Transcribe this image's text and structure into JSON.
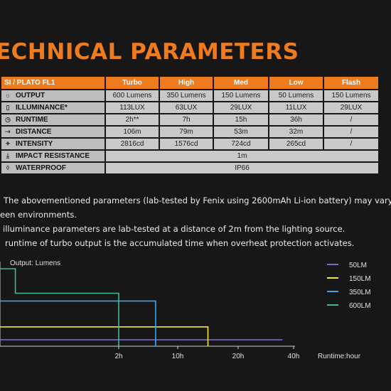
{
  "title": "ECHNICAL PARAMETERS",
  "table": {
    "header": [
      "SI / PLATO FL1",
      "Turbo",
      "High",
      "Med",
      "Low",
      "Flash"
    ],
    "rows": [
      {
        "icon": "output-icon",
        "glyph": "☼",
        "cells": [
          "OUTPUT",
          "600 Lumens",
          "350 Lumens",
          "150 Lumens",
          "50 Lumens",
          "150 Lumens"
        ]
      },
      {
        "icon": "illuminance-icon",
        "glyph": "▯",
        "cells": [
          "ILLUMINANCE*",
          "113LUX",
          "63LUX",
          "29LUX",
          "11LUX",
          "29LUX"
        ]
      },
      {
        "icon": "runtime-icon",
        "glyph": "◷",
        "cells": [
          "RUNTIME",
          "2h**",
          "7h",
          "15h",
          "36h",
          "/"
        ]
      },
      {
        "icon": "distance-icon",
        "glyph": "⇢",
        "cells": [
          "DISTANCE",
          "106m",
          "79m",
          "53m",
          "32m",
          "/"
        ]
      },
      {
        "icon": "intensity-icon",
        "glyph": "✦",
        "cells": [
          "INTENSITY",
          "2816cd",
          "1576cd",
          "724cd",
          "265cd",
          "/"
        ]
      },
      {
        "icon": "impact-icon",
        "glyph": "⤓",
        "cells": [
          "IMPACT RESISTANCE",
          "1m"
        ]
      },
      {
        "icon": "waterproof-icon",
        "glyph": "◊",
        "cells": [
          "WATERPROOF",
          "IP66"
        ]
      }
    ]
  },
  "notes": [
    "The abovementioned parameters (lab-tested by Fenix using 2600mAh Li-ion battery) may vary",
    "een environments.",
    "illuminance parameters are lab-tested at a distance of 2m from the lighting source.",
    "runtime of  turbo output is the accumulated time when overheat protection activates."
  ],
  "chart_data": {
    "type": "line",
    "ylabel": "Output: Lumens",
    "xlabel": "Runtime:hour",
    "x_ticks": [
      "2h",
      "10h",
      "20h",
      "40h"
    ],
    "legend": [
      {
        "name": "50LM",
        "color": "#7c66cc"
      },
      {
        "name": "150LM",
        "color": "#f2e63c"
      },
      {
        "name": "350LM",
        "color": "#3fa3f0"
      },
      {
        "name": "600LM",
        "color": "#43b98f"
      }
    ],
    "series": [
      {
        "name": "50LM",
        "color": "#7c66cc",
        "x": [
          0,
          36
        ],
        "y": [
          50,
          50
        ]
      },
      {
        "name": "150LM",
        "color": "#f2e63c",
        "x": [
          0,
          15,
          15
        ],
        "y": [
          150,
          150,
          0
        ]
      },
      {
        "name": "350LM",
        "color": "#3fa3f0",
        "x": [
          0,
          7,
          7
        ],
        "y": [
          350,
          350,
          0
        ]
      },
      {
        "name": "600LM",
        "color": "#43b98f",
        "x": [
          0,
          0.3,
          0.3,
          2,
          2
        ],
        "y": [
          600,
          600,
          410,
          410,
          0
        ]
      }
    ]
  }
}
